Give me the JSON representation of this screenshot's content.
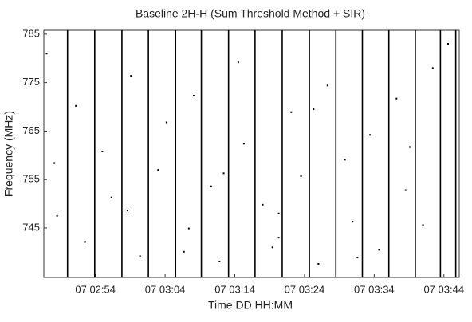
{
  "chart_data": {
    "type": "mask",
    "title": "Baseline 2H-H (Sum Threshold Method + SIR)",
    "xlabel": "Time DD HH:MM",
    "ylabel": "Frequency (MHz)",
    "xlim": [
      166.6,
      226.2
    ],
    "ylim": [
      734.8,
      785.8
    ],
    "xticks": [
      {
        "value": 174,
        "label": "07 02:54"
      },
      {
        "value": 184,
        "label": "07 03:04"
      },
      {
        "value": 194,
        "label": "07 03:14"
      },
      {
        "value": 204,
        "label": "07 03:24"
      },
      {
        "value": 214,
        "label": "07 03:34"
      },
      {
        "value": 224,
        "label": "07 03:44"
      }
    ],
    "yticks": [
      785,
      775,
      765,
      755,
      745
    ],
    "color": "#000000",
    "lines": {
      "x": [
        170.0,
        173.9,
        177.8,
        181.6,
        185.5,
        189.2,
        193.1,
        196.9,
        200.8,
        204.7,
        208.5,
        212.3,
        216.1,
        219.9,
        223.5,
        225.7
      ]
    },
    "points": {
      "x": [
        167.0,
        168.5,
        171.2,
        172.5,
        175.0,
        176.3,
        179.1,
        180.4,
        183.0,
        184.2,
        187.4,
        188.1,
        190.6,
        191.8,
        194.5,
        195.3,
        198.0,
        199.4,
        200.3,
        200.3,
        202.1,
        203.5,
        206.0,
        207.3,
        209.8,
        210.9,
        213.4,
        214.7,
        217.2,
        218.5,
        221.0,
        222.4,
        224.6,
        178.6,
        186.7,
        192.4,
        205.3,
        211.6,
        219.1,
        168.1
      ],
      "y": [
        781.0,
        747.5,
        770.2,
        742.1,
        760.8,
        751.3,
        776.4,
        739.2,
        757.0,
        766.8,
        744.9,
        772.3,
        753.6,
        738.1,
        779.2,
        762.4,
        749.8,
        741.0,
        748.0,
        743.0,
        768.9,
        755.7,
        737.6,
        774.4,
        759.1,
        746.3,
        764.2,
        740.5,
        771.7,
        752.8,
        745.6,
        778.0,
        783.0,
        748.6,
        740.1,
        756.3,
        769.5,
        738.9,
        761.7,
        758.4
      ]
    }
  }
}
